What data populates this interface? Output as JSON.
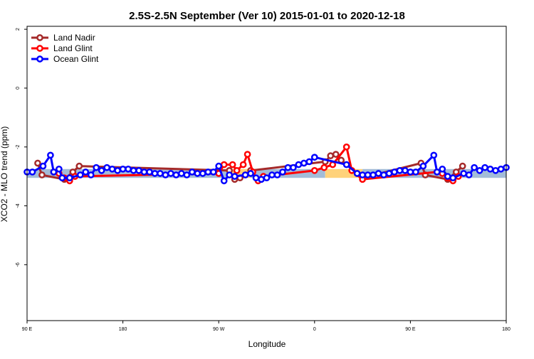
{
  "chart_data": {
    "type": "line",
    "title": "2.5S-2.5N September (Ver 10)   2015-01-01 to 2020-12-18",
    "xlabel": "Longitude",
    "ylabel": "XCO2 - MLO trend (ppm)",
    "x_ticks": [
      {
        "value": 0,
        "label": "90 E"
      },
      {
        "value": 90,
        "label": "180"
      },
      {
        "value": 180,
        "label": "90 W"
      },
      {
        "value": 270,
        "label": "0"
      },
      {
        "value": 360,
        "label": "90 E"
      },
      {
        "value": 450,
        "label": "180"
      }
    ],
    "y_ticks": [
      {
        "value": 2,
        "label": "2"
      },
      {
        "value": 0,
        "label": "0"
      },
      {
        "value": -2,
        "label": "-2"
      },
      {
        "value": -4,
        "label": "-4"
      },
      {
        "value": -6,
        "label": "-6"
      }
    ],
    "xlim": [
      0,
      450
    ],
    "ylim": [
      -7.9,
      2.1
    ],
    "grid": false,
    "legend": {
      "position": "top-left"
    },
    "bands": [
      {
        "x0": 0,
        "x1": 190,
        "y0": -3.05,
        "y1": -2.75,
        "color": "#a3bcd8"
      },
      {
        "x0": 190,
        "x1": 210,
        "y0": -3.05,
        "y1": -2.75,
        "color": "#ffd27a"
      },
      {
        "x0": 210,
        "x1": 280,
        "y0": -3.05,
        "y1": -2.75,
        "color": "#a3bcd8"
      },
      {
        "x0": 280,
        "x1": 315,
        "y0": -3.05,
        "y1": -2.75,
        "color": "#ffd27a"
      },
      {
        "x0": 315,
        "x1": 450,
        "y0": -3.05,
        "y1": -2.75,
        "color": "#a3bcd8"
      }
    ],
    "series": [
      {
        "name": "Land Nadir",
        "color": "#a52a2a",
        "points": [
          [
            10,
            -2.55
          ],
          [
            14,
            -2.95
          ],
          [
            35,
            -3.1
          ],
          [
            43,
            -2.85
          ],
          [
            49,
            -2.65
          ],
          [
            190,
            -2.8
          ],
          [
            195,
            -3.1
          ],
          [
            200,
            -3.05
          ],
          [
            205,
            -2.95
          ],
          [
            210,
            -2.8
          ],
          [
            280,
            -2.5
          ],
          [
            285,
            -2.3
          ],
          [
            290,
            -2.25
          ],
          [
            295,
            -2.45
          ],
          [
            310,
            -2.9
          ],
          [
            315,
            -3.05
          ],
          [
            370,
            -2.55
          ],
          [
            374,
            -2.95
          ],
          [
            395,
            -3.1
          ],
          [
            403,
            -2.85
          ],
          [
            409,
            -2.65
          ]
        ]
      },
      {
        "name": "Land Glint",
        "color": "#ff0000",
        "points": [
          [
            25,
            -2.85
          ],
          [
            30,
            -2.9
          ],
          [
            35,
            -3.05
          ],
          [
            40,
            -3.15
          ],
          [
            45,
            -3.0
          ],
          [
            180,
            -2.9
          ],
          [
            185,
            -2.6
          ],
          [
            193,
            -2.6
          ],
          [
            197,
            -2.8
          ],
          [
            203,
            -2.6
          ],
          [
            207,
            -2.25
          ],
          [
            212,
            -2.85
          ],
          [
            217,
            -3.15
          ],
          [
            222,
            -3.0
          ],
          [
            270,
            -2.8
          ],
          [
            279,
            -2.7
          ],
          [
            287,
            -2.6
          ],
          [
            300,
            -2.0
          ],
          [
            305,
            -2.8
          ],
          [
            315,
            -3.1
          ],
          [
            385,
            -2.85
          ],
          [
            390,
            -2.9
          ],
          [
            395,
            -3.05
          ],
          [
            400,
            -3.15
          ],
          [
            405,
            -3.0
          ]
        ]
      },
      {
        "name": "Ocean Glint",
        "color": "#0000ff",
        "points": [
          [
            0,
            -2.85
          ],
          [
            5,
            -2.85
          ],
          [
            15,
            -2.65
          ],
          [
            22,
            -2.28
          ],
          [
            25,
            -2.85
          ],
          [
            30,
            -2.75
          ],
          [
            33,
            -3.05
          ],
          [
            40,
            -3.05
          ],
          [
            50,
            -2.95
          ],
          [
            55,
            -2.85
          ],
          [
            60,
            -2.95
          ],
          [
            65,
            -2.7
          ],
          [
            70,
            -2.8
          ],
          [
            75,
            -2.7
          ],
          [
            80,
            -2.75
          ],
          [
            85,
            -2.8
          ],
          [
            90,
            -2.75
          ],
          [
            95,
            -2.75
          ],
          [
            100,
            -2.8
          ],
          [
            105,
            -2.8
          ],
          [
            110,
            -2.85
          ],
          [
            115,
            -2.85
          ],
          [
            120,
            -2.9
          ],
          [
            125,
            -2.9
          ],
          [
            130,
            -2.95
          ],
          [
            135,
            -2.9
          ],
          [
            140,
            -2.95
          ],
          [
            145,
            -2.9
          ],
          [
            150,
            -2.95
          ],
          [
            155,
            -2.85
          ],
          [
            160,
            -2.9
          ],
          [
            165,
            -2.9
          ],
          [
            170,
            -2.85
          ],
          [
            175,
            -2.85
          ],
          [
            180,
            -2.65
          ],
          [
            185,
            -3.15
          ],
          [
            190,
            -2.95
          ],
          [
            195,
            -3.0
          ],
          [
            205,
            -2.95
          ],
          [
            210,
            -2.9
          ],
          [
            215,
            -3.05
          ],
          [
            220,
            -3.1
          ],
          [
            225,
            -3.05
          ],
          [
            230,
            -2.95
          ],
          [
            235,
            -2.95
          ],
          [
            240,
            -2.85
          ],
          [
            245,
            -2.7
          ],
          [
            250,
            -2.7
          ],
          [
            255,
            -2.6
          ],
          [
            260,
            -2.55
          ],
          [
            265,
            -2.5
          ],
          [
            270,
            -2.35
          ],
          [
            300,
            -2.6
          ],
          [
            310,
            -2.9
          ],
          [
            315,
            -2.95
          ],
          [
            320,
            -2.95
          ],
          [
            325,
            -2.95
          ],
          [
            330,
            -2.9
          ],
          [
            335,
            -2.95
          ],
          [
            340,
            -2.9
          ],
          [
            345,
            -2.85
          ],
          [
            350,
            -2.8
          ],
          [
            355,
            -2.8
          ],
          [
            360,
            -2.85
          ],
          [
            365,
            -2.85
          ],
          [
            372,
            -2.65
          ],
          [
            382,
            -2.28
          ],
          [
            385,
            -2.85
          ],
          [
            390,
            -2.75
          ],
          [
            395,
            -3.0
          ],
          [
            400,
            -3.05
          ],
          [
            410,
            -2.9
          ],
          [
            415,
            -2.95
          ],
          [
            420,
            -2.7
          ],
          [
            425,
            -2.8
          ],
          [
            430,
            -2.7
          ],
          [
            435,
            -2.75
          ],
          [
            440,
            -2.8
          ],
          [
            445,
            -2.75
          ],
          [
            450,
            -2.7
          ]
        ]
      }
    ]
  }
}
